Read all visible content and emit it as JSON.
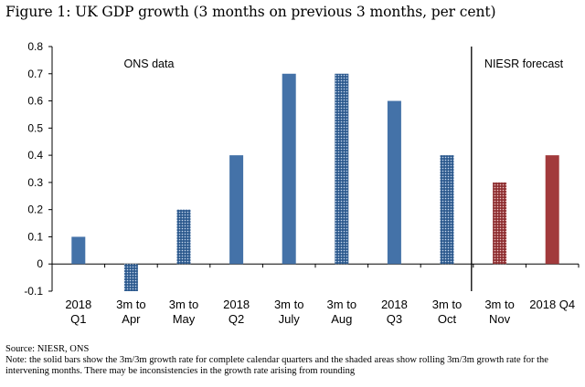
{
  "title": "Figure 1: UK GDP growth (3 months on previous 3 months, per cent)",
  "footer": {
    "source": "Source: NIESR, ONS",
    "note": "Note: the solid bars show the 3m/3m growth rate for complete calendar quarters and the shaded areas show rolling 3m/3m growth rate for the intervening months. There may be inconsistencies in the growth rate arising from rounding"
  },
  "colors": {
    "ons": "#4472a8",
    "forecast": "#a23a3c",
    "divider": "#000000"
  },
  "chart_data": {
    "type": "bar",
    "title": "Figure 1: UK GDP growth (3 months on previous 3 months, per cent)",
    "ylim": [
      -0.1,
      0.8
    ],
    "yticks": [
      "0.8",
      "0.7",
      "0.6",
      "0.5",
      "0.4",
      "0.3",
      "0.2",
      "0.1",
      "0",
      "-0.1"
    ],
    "grid": false,
    "regions": [
      {
        "label": "ONS data",
        "from": 0,
        "to": 7
      },
      {
        "label": "NIESR forecast",
        "from": 8,
        "to": 9
      }
    ],
    "categories": [
      [
        "2018",
        "Q1"
      ],
      [
        "3m to",
        "Apr"
      ],
      [
        "3m to",
        "May"
      ],
      [
        "2018",
        "Q2"
      ],
      [
        "3m to",
        "July"
      ],
      [
        "3m to",
        "Aug"
      ],
      [
        "2018",
        "Q3"
      ],
      [
        "3m to",
        "Oct"
      ],
      [
        "3m to",
        "Nov"
      ],
      [
        "2018 Q4"
      ]
    ],
    "values": [
      0.1,
      -0.1,
      0.2,
      0.4,
      0.7,
      0.7,
      0.6,
      0.4,
      0.3,
      0.4
    ],
    "styles": [
      "solid",
      "shaded",
      "shaded",
      "solid",
      "solid",
      "shaded",
      "solid",
      "shaded",
      "shaded",
      "solid"
    ],
    "group": [
      "ons",
      "ons",
      "ons",
      "ons",
      "ons",
      "ons",
      "ons",
      "ons",
      "forecast",
      "forecast"
    ]
  }
}
